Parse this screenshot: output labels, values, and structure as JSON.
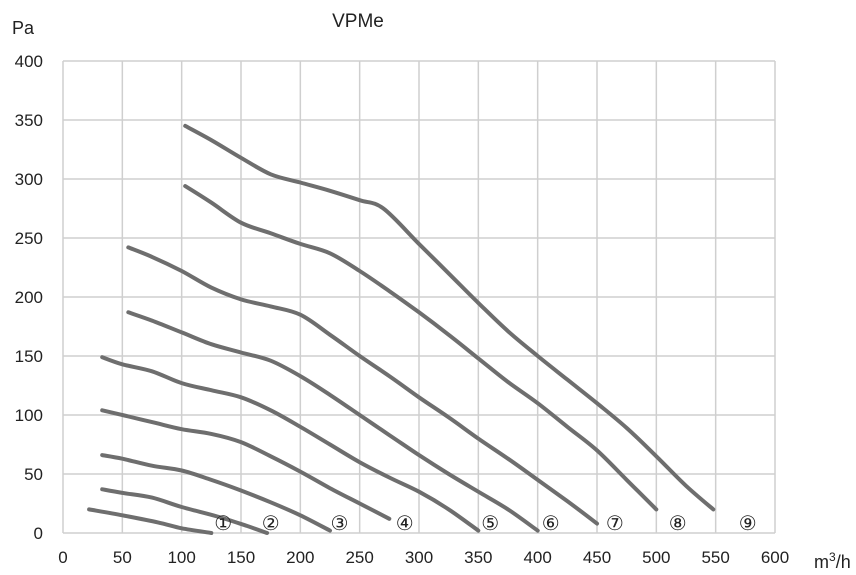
{
  "chart_data": {
    "type": "line",
    "title": "VPMe",
    "ylabel": "Pa",
    "xlabel": "m3/h",
    "xlabel_base": "m",
    "xlabel_sup": "3",
    "xlabel_tail": "/h",
    "xlim": [
      0,
      600
    ],
    "ylim": [
      0,
      400
    ],
    "x_ticks": [
      0,
      50,
      100,
      150,
      200,
      250,
      300,
      350,
      400,
      450,
      500,
      550,
      600
    ],
    "y_ticks": [
      0,
      50,
      100,
      150,
      200,
      250,
      300,
      350,
      400
    ],
    "grid": true,
    "series": [
      {
        "name": "①",
        "x": [
          22,
          50,
          80,
          100,
          125
        ],
        "y": [
          20,
          15,
          9,
          4,
          0
        ]
      },
      {
        "name": "②",
        "x": [
          33,
          50,
          75,
          100,
          130,
          155,
          172
        ],
        "y": [
          37,
          34,
          30,
          22,
          14,
          6,
          0
        ]
      },
      {
        "name": "③",
        "x": [
          33,
          50,
          75,
          100,
          125,
          150,
          175,
          200,
          225
        ],
        "y": [
          66,
          63,
          57,
          53,
          45,
          36,
          26,
          15,
          2
        ]
      },
      {
        "name": "④",
        "x": [
          33,
          50,
          75,
          100,
          125,
          150,
          175,
          200,
          225,
          250,
          275
        ],
        "y": [
          104,
          100,
          94,
          88,
          84,
          77,
          65,
          52,
          38,
          25,
          12
        ]
      },
      {
        "name": "⑤",
        "x": [
          33,
          50,
          75,
          100,
          125,
          150,
          175,
          200,
          225,
          250,
          275,
          300,
          325,
          350
        ],
        "y": [
          149,
          143,
          137,
          127,
          121,
          115,
          104,
          90,
          75,
          60,
          47,
          35,
          20,
          2
        ]
      },
      {
        "name": "⑥",
        "x": [
          55,
          75,
          100,
          125,
          150,
          175,
          200,
          225,
          250,
          275,
          300,
          325,
          350,
          375,
          400
        ],
        "y": [
          187,
          180,
          170,
          160,
          153,
          146,
          133,
          117,
          100,
          83,
          66,
          50,
          35,
          20,
          2
        ]
      },
      {
        "name": "⑦",
        "x": [
          55,
          75,
          100,
          125,
          150,
          175,
          200,
          225,
          250,
          275,
          300,
          325,
          350,
          375,
          400,
          425,
          450
        ],
        "y": [
          242,
          234,
          222,
          208,
          198,
          192,
          185,
          168,
          150,
          133,
          115,
          98,
          80,
          63,
          45,
          27,
          8
        ]
      },
      {
        "name": "⑧",
        "x": [
          103,
          125,
          150,
          175,
          200,
          225,
          250,
          275,
          300,
          325,
          350,
          375,
          400,
          425,
          450,
          475,
          500
        ],
        "y": [
          294,
          280,
          263,
          254,
          245,
          237,
          222,
          205,
          187,
          168,
          148,
          128,
          110,
          90,
          70,
          45,
          20
        ]
      },
      {
        "name": "⑨",
        "x": [
          103,
          125,
          150,
          175,
          200,
          225,
          250,
          270,
          300,
          325,
          350,
          375,
          400,
          425,
          450,
          475,
          500,
          525,
          548
        ],
        "y": [
          345,
          333,
          318,
          304,
          297,
          290,
          282,
          275,
          245,
          220,
          195,
          171,
          150,
          130,
          110,
          89,
          65,
          40,
          20
        ]
      }
    ],
    "label_positions_x": [
      135,
      175,
      233,
      288,
      360,
      411,
      465,
      518,
      577
    ]
  }
}
